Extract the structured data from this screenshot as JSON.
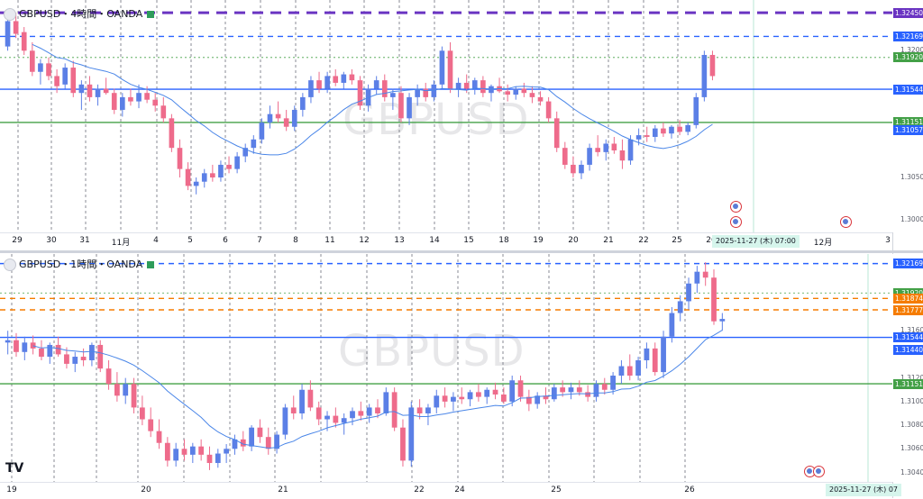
{
  "chart_data": [
    {
      "type": "candlestick",
      "symbol": "GBPUSD",
      "header": "GBPUSD・4時間・OANDA",
      "watermark": "GBPUSD",
      "ylim": [
        1.2985,
        1.326
      ],
      "y_ticks": [
        "1.32000",
        "1.30500",
        "1.30000"
      ],
      "x_ticks": [
        "29",
        "30",
        "31",
        "11月",
        "4",
        "5",
        "6",
        "7",
        "8",
        "11",
        "12",
        "13",
        "14",
        "15",
        "18",
        "19",
        "20",
        "21",
        "22",
        "25",
        "26",
        "12月",
        "3"
      ],
      "crosshair_date": "2025-11-27 (木)   07:00",
      "price_tags": [
        {
          "label": "1.32450",
          "value": 1.3245,
          "color": "#6a34c2",
          "style": "dashed-thick"
        },
        {
          "label": "1.32169",
          "value": 1.32169,
          "color": "#2962ff",
          "style": "dashed"
        },
        {
          "label": "1.31920",
          "value": 1.3192,
          "color": "#43a047",
          "style": "dotted"
        },
        {
          "label": "1.31544",
          "value": 1.31544,
          "color": "#2962ff",
          "style": "solid"
        },
        {
          "label": "1.31151",
          "value": 1.31151,
          "color": "#43a047",
          "style": "solid"
        },
        {
          "label": "1.31057",
          "value": 1.31057,
          "color": "#2962ff",
          "style": "ma"
        }
      ],
      "ma_color": "#4a86e8",
      "up_color": "#5b7fe6",
      "down_color": "#ee6b8b",
      "candles": [
        [
          1.3205,
          1.324,
          1.32,
          1.3235
        ],
        [
          1.3235,
          1.3245,
          1.3215,
          1.322
        ],
        [
          1.3222,
          1.3228,
          1.3195,
          1.32
        ],
        [
          1.32,
          1.321,
          1.317,
          1.3175
        ],
        [
          1.3175,
          1.319,
          1.316,
          1.3185
        ],
        [
          1.3185,
          1.3192,
          1.3165,
          1.317
        ],
        [
          1.317,
          1.3178,
          1.315,
          1.3158
        ],
        [
          1.316,
          1.3185,
          1.3155,
          1.318
        ],
        [
          1.318,
          1.3188,
          1.3145,
          1.315
        ],
        [
          1.315,
          1.3165,
          1.313,
          1.316
        ],
        [
          1.316,
          1.317,
          1.314,
          1.3145
        ],
        [
          1.3145,
          1.316,
          1.3135,
          1.3155
        ],
        [
          1.3155,
          1.3168,
          1.3148,
          1.315
        ],
        [
          1.315,
          1.3155,
          1.3125,
          1.313
        ],
        [
          1.313,
          1.315,
          1.3122,
          1.3145
        ],
        [
          1.3145,
          1.3155,
          1.3135,
          1.314
        ],
        [
          1.314,
          1.316,
          1.3132,
          1.315
        ],
        [
          1.315,
          1.3158,
          1.3138,
          1.3142
        ],
        [
          1.3142,
          1.315,
          1.3128,
          1.3135
        ],
        [
          1.3135,
          1.3145,
          1.3115,
          1.312
        ],
        [
          1.312,
          1.3125,
          1.308,
          1.3085
        ],
        [
          1.3085,
          1.3095,
          1.305,
          1.306
        ],
        [
          1.306,
          1.3068,
          1.3035,
          1.304
        ],
        [
          1.304,
          1.305,
          1.303,
          1.3045
        ],
        [
          1.3045,
          1.306,
          1.3038,
          1.3055
        ],
        [
          1.3055,
          1.3065,
          1.3045,
          1.305
        ],
        [
          1.305,
          1.307,
          1.3045,
          1.3065
        ],
        [
          1.3065,
          1.3075,
          1.3055,
          1.306
        ],
        [
          1.306,
          1.308,
          1.3055,
          1.3075
        ],
        [
          1.3075,
          1.309,
          1.3068,
          1.3085
        ],
        [
          1.3085,
          1.31,
          1.3078,
          1.3095
        ],
        [
          1.3095,
          1.312,
          1.309,
          1.3115
        ],
        [
          1.3115,
          1.3135,
          1.3108,
          1.3125
        ],
        [
          1.3125,
          1.314,
          1.3115,
          1.312
        ],
        [
          1.312,
          1.313,
          1.3105,
          1.311
        ],
        [
          1.311,
          1.3135,
          1.3105,
          1.313
        ],
        [
          1.313,
          1.315,
          1.3122,
          1.3145
        ],
        [
          1.3145,
          1.317,
          1.3138,
          1.3165
        ],
        [
          1.3165,
          1.3175,
          1.315,
          1.3155
        ],
        [
          1.3155,
          1.3175,
          1.315,
          1.317
        ],
        [
          1.317,
          1.3178,
          1.3158,
          1.3162
        ],
        [
          1.3162,
          1.3175,
          1.3155,
          1.3172
        ],
        [
          1.3172,
          1.3178,
          1.316,
          1.3165
        ],
        [
          1.3165,
          1.317,
          1.313,
          1.3135
        ],
        [
          1.3135,
          1.316,
          1.3128,
          1.3155
        ],
        [
          1.3155,
          1.317,
          1.3148,
          1.3165
        ],
        [
          1.3165,
          1.3172,
          1.314,
          1.3145
        ],
        [
          1.3145,
          1.3155,
          1.313,
          1.315
        ],
        [
          1.315,
          1.3158,
          1.3115,
          1.312
        ],
        [
          1.312,
          1.315,
          1.3112,
          1.3145
        ],
        [
          1.3145,
          1.316,
          1.3135,
          1.3155
        ],
        [
          1.3155,
          1.3162,
          1.314,
          1.3145
        ],
        [
          1.3145,
          1.3165,
          1.314,
          1.316
        ],
        [
          1.316,
          1.3205,
          1.3155,
          1.32
        ],
        [
          1.32,
          1.321,
          1.315,
          1.3155
        ],
        [
          1.3155,
          1.3168,
          1.3145,
          1.3162
        ],
        [
          1.3162,
          1.3172,
          1.315,
          1.3155
        ],
        [
          1.3155,
          1.3168,
          1.3148,
          1.3165
        ],
        [
          1.3165,
          1.317,
          1.3145,
          1.315
        ],
        [
          1.315,
          1.316,
          1.314,
          1.3158
        ],
        [
          1.3158,
          1.3168,
          1.315,
          1.3152
        ],
        [
          1.3152,
          1.316,
          1.314,
          1.3148
        ],
        [
          1.3148,
          1.3158,
          1.3142,
          1.3155
        ],
        [
          1.3155,
          1.3162,
          1.3145,
          1.315
        ],
        [
          1.315,
          1.3158,
          1.3138,
          1.3145
        ],
        [
          1.3145,
          1.3152,
          1.3135,
          1.314
        ],
        [
          1.314,
          1.3145,
          1.3115,
          1.312
        ],
        [
          1.312,
          1.3128,
          1.308,
          1.3085
        ],
        [
          1.3085,
          1.3092,
          1.306,
          1.3065
        ],
        [
          1.3065,
          1.3075,
          1.305,
          1.3055
        ],
        [
          1.3055,
          1.307,
          1.3048,
          1.3065
        ],
        [
          1.3065,
          1.309,
          1.3058,
          1.3085
        ],
        [
          1.3085,
          1.31,
          1.3075,
          1.308
        ],
        [
          1.308,
          1.3095,
          1.307,
          1.309
        ],
        [
          1.309,
          1.3098,
          1.3078,
          1.3082
        ],
        [
          1.3082,
          1.3095,
          1.306,
          1.307
        ],
        [
          1.307,
          1.31,
          1.3065,
          1.3095
        ],
        [
          1.3095,
          1.3108,
          1.3088,
          1.31
        ],
        [
          1.31,
          1.311,
          1.3092,
          1.3098
        ],
        [
          1.3098,
          1.3112,
          1.3092,
          1.3108
        ],
        [
          1.3108,
          1.3115,
          1.3098,
          1.3102
        ],
        [
          1.3102,
          1.3112,
          1.3096,
          1.311
        ],
        [
          1.311,
          1.3118,
          1.31,
          1.3104
        ],
        [
          1.3104,
          1.3115,
          1.31,
          1.3112
        ],
        [
          1.3112,
          1.315,
          1.3108,
          1.3145
        ],
        [
          1.3145,
          1.32,
          1.314,
          1.3195
        ],
        [
          1.3195,
          1.32,
          1.3165,
          1.317
        ]
      ]
    },
    {
      "type": "candlestick",
      "symbol": "GBPUSD",
      "header": "GBPUSD・1時間・OANDA",
      "watermark": "GBPUSD",
      "ylim": [
        1.3032,
        1.3225
      ],
      "y_ticks": [
        "1.31600",
        "1.31200",
        "1.31000",
        "1.30800",
        "1.30600",
        "1.30400"
      ],
      "x_ticks": [
        "19",
        "20",
        "21",
        "22",
        "24",
        "25",
        "26"
      ],
      "crosshair_date": "2025-11-27 (木)   07",
      "price_tags": [
        {
          "label": "1.32169",
          "value": 1.32169,
          "color": "#2962ff",
          "style": "dashed"
        },
        {
          "label": "1.31920",
          "value": 1.3192,
          "color": "#43a047",
          "style": "dotted"
        },
        {
          "label": "1.31874",
          "value": 1.31874,
          "color": "#f57c00",
          "style": "dashed"
        },
        {
          "label": "1.31777",
          "value": 1.31777,
          "color": "#f57c00",
          "style": "dashed"
        },
        {
          "label": "1.31544",
          "value": 1.31544,
          "color": "#2962ff",
          "style": "solid"
        },
        {
          "label": "1.31440",
          "value": 1.3144,
          "color": "#2962ff",
          "style": "ma"
        },
        {
          "label": "1.31151",
          "value": 1.31151,
          "color": "#43a047",
          "style": "solid"
        }
      ],
      "ma_color": "#4a86e8",
      "up_color": "#5b7fe6",
      "down_color": "#ee6b8b",
      "candles": [
        [
          1.315,
          1.316,
          1.314,
          1.3152
        ],
        [
          1.3152,
          1.3158,
          1.3138,
          1.3142
        ],
        [
          1.3142,
          1.3155,
          1.3135,
          1.315
        ],
        [
          1.315,
          1.3156,
          1.314,
          1.3145
        ],
        [
          1.3145,
          1.3152,
          1.3135,
          1.3138
        ],
        [
          1.3138,
          1.315,
          1.3132,
          1.3148
        ],
        [
          1.3148,
          1.3155,
          1.3138,
          1.314
        ],
        [
          1.314,
          1.3146,
          1.3128,
          1.3132
        ],
        [
          1.3132,
          1.3142,
          1.3125,
          1.3138
        ],
        [
          1.3138,
          1.3145,
          1.313,
          1.3135
        ],
        [
          1.3135,
          1.315,
          1.313,
          1.3148
        ],
        [
          1.3148,
          1.3152,
          1.3125,
          1.3128
        ],
        [
          1.3128,
          1.3135,
          1.311,
          1.3115
        ],
        [
          1.3115,
          1.3125,
          1.31,
          1.3105
        ],
        [
          1.3105,
          1.312,
          1.3098,
          1.3115
        ],
        [
          1.3115,
          1.312,
          1.309,
          1.3095
        ],
        [
          1.3095,
          1.3105,
          1.308,
          1.3085
        ],
        [
          1.3085,
          1.3095,
          1.307,
          1.3075
        ],
        [
          1.3075,
          1.3085,
          1.306,
          1.3065
        ],
        [
          1.3065,
          1.307,
          1.3045,
          1.305
        ],
        [
          1.305,
          1.3065,
          1.3045,
          1.306
        ],
        [
          1.306,
          1.3068,
          1.305,
          1.3055
        ],
        [
          1.3055,
          1.3065,
          1.3048,
          1.3062
        ],
        [
          1.3062,
          1.3068,
          1.305,
          1.3055
        ],
        [
          1.3055,
          1.3062,
          1.3042,
          1.3048
        ],
        [
          1.3048,
          1.306,
          1.3044,
          1.3056
        ],
        [
          1.3056,
          1.3064,
          1.3048,
          1.306
        ],
        [
          1.306,
          1.3072,
          1.3055,
          1.3068
        ],
        [
          1.3068,
          1.3075,
          1.3058,
          1.3062
        ],
        [
          1.3062,
          1.308,
          1.3058,
          1.3078
        ],
        [
          1.3078,
          1.3085,
          1.3065,
          1.307
        ],
        [
          1.307,
          1.3078,
          1.3055,
          1.306
        ],
        [
          1.306,
          1.3075,
          1.3056,
          1.3072
        ],
        [
          1.3072,
          1.3098,
          1.3068,
          1.3095
        ],
        [
          1.3095,
          1.3105,
          1.3085,
          1.309
        ],
        [
          1.309,
          1.3115,
          1.3085,
          1.311
        ],
        [
          1.311,
          1.3118,
          1.3092,
          1.3095
        ],
        [
          1.3095,
          1.31,
          1.308,
          1.3085
        ],
        [
          1.3085,
          1.3092,
          1.3075,
          1.3088
        ],
        [
          1.3088,
          1.3095,
          1.3078,
          1.3082
        ],
        [
          1.3082,
          1.309,
          1.3072,
          1.3086
        ],
        [
          1.3086,
          1.3095,
          1.308,
          1.3092
        ],
        [
          1.3092,
          1.31,
          1.3084,
          1.3088
        ],
        [
          1.3088,
          1.3098,
          1.3082,
          1.3095
        ],
        [
          1.3095,
          1.3102,
          1.3086,
          1.309
        ],
        [
          1.309,
          1.3112,
          1.3088,
          1.3108
        ],
        [
          1.3108,
          1.3112,
          1.3075,
          1.3078
        ],
        [
          1.3078,
          1.3085,
          1.3045,
          1.305
        ],
        [
          1.305,
          1.31,
          1.3045,
          1.3095
        ],
        [
          1.3095,
          1.3102,
          1.3085,
          1.309
        ],
        [
          1.309,
          1.3098,
          1.308,
          1.3095
        ],
        [
          1.3095,
          1.311,
          1.309,
          1.3105
        ],
        [
          1.3105,
          1.3112,
          1.3095,
          1.31
        ],
        [
          1.31,
          1.3108,
          1.3092,
          1.3104
        ],
        [
          1.3104,
          1.3112,
          1.3098,
          1.3102
        ],
        [
          1.3102,
          1.311,
          1.3096,
          1.3108
        ],
        [
          1.3108,
          1.3115,
          1.31,
          1.3104
        ],
        [
          1.3104,
          1.3112,
          1.3098,
          1.311
        ],
        [
          1.311,
          1.3116,
          1.3102,
          1.3106
        ],
        [
          1.3106,
          1.3112,
          1.3098,
          1.31
        ],
        [
          1.31,
          1.3122,
          1.3096,
          1.3118
        ],
        [
          1.3118,
          1.3122,
          1.31,
          1.3104
        ],
        [
          1.3104,
          1.311,
          1.3092,
          1.3098
        ],
        [
          1.3098,
          1.3108,
          1.3094,
          1.3105
        ],
        [
          1.3105,
          1.3112,
          1.3098,
          1.3102
        ],
        [
          1.3102,
          1.3115,
          1.31,
          1.3112
        ],
        [
          1.3112,
          1.3118,
          1.3104,
          1.3108
        ],
        [
          1.3108,
          1.3116,
          1.3102,
          1.3112
        ],
        [
          1.3112,
          1.3118,
          1.3105,
          1.3108
        ],
        [
          1.3108,
          1.3114,
          1.31,
          1.3104
        ],
        [
          1.3104,
          1.3118,
          1.31,
          1.3115
        ],
        [
          1.3115,
          1.312,
          1.3106,
          1.311
        ],
        [
          1.311,
          1.3125,
          1.3106,
          1.3122
        ],
        [
          1.3122,
          1.3135,
          1.3115,
          1.313
        ],
        [
          1.313,
          1.314,
          1.3118,
          1.3122
        ],
        [
          1.3122,
          1.3138,
          1.3118,
          1.3135
        ],
        [
          1.3135,
          1.315,
          1.3128,
          1.3145
        ],
        [
          1.3145,
          1.315,
          1.3122,
          1.3125
        ],
        [
          1.3125,
          1.316,
          1.312,
          1.3155
        ],
        [
          1.3155,
          1.318,
          1.315,
          1.3175
        ],
        [
          1.3175,
          1.319,
          1.3168,
          1.3185
        ],
        [
          1.3185,
          1.3205,
          1.3178,
          1.32
        ],
        [
          1.32,
          1.3215,
          1.3192,
          1.321
        ],
        [
          1.321,
          1.3218,
          1.3198,
          1.3205
        ],
        [
          1.3205,
          1.3212,
          1.3165,
          1.3168
        ],
        [
          1.3168,
          1.3175,
          1.316,
          1.317
        ]
      ]
    }
  ],
  "icons": {
    "tv_logo": "TV",
    "economic_event": "us-flag-event-icon"
  }
}
